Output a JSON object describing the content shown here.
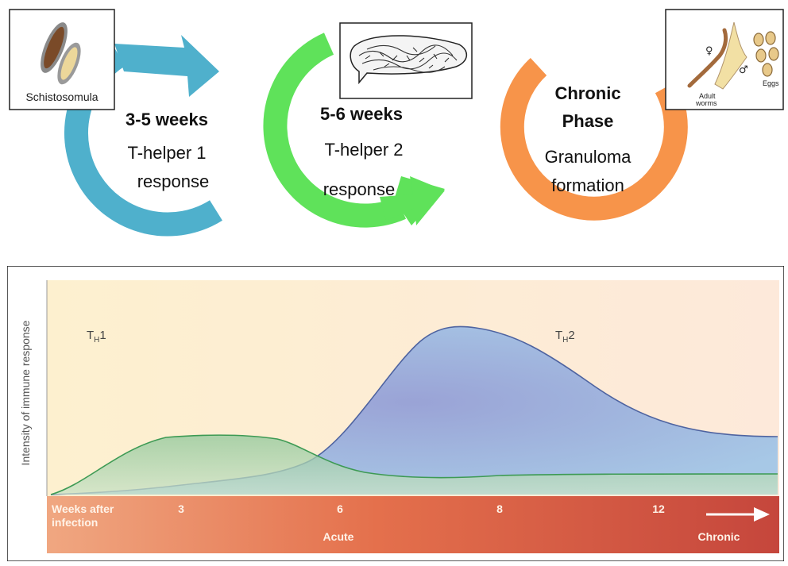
{
  "top_panel": {
    "stages": [
      {
        "id": "th1",
        "duration": "3-5 weeks",
        "line1": "T-helper 1",
        "line2": "response",
        "color": "#4fb0cc"
      },
      {
        "id": "th2",
        "duration": "5-6 weeks",
        "line1": "T-helper 2",
        "line2": "response",
        "color": "#5fe25a"
      },
      {
        "id": "chronic",
        "title_line1": "Chronic",
        "title_line2": "Phase",
        "line1": "Granuloma",
        "line2": "formation",
        "color": "#f7944a"
      }
    ],
    "insets": {
      "schistosomula_label": "Schistosomula",
      "adult_worms_line1": "Adult",
      "adult_worms_line2": "worms",
      "eggs_label": "Eggs",
      "female_symbol": "♀",
      "male_symbol": "♂"
    }
  },
  "bottom_panel": {
    "ylabel": "Intensity of immune response",
    "series_labels": {
      "th1": {
        "main": "T",
        "sub": "H",
        "num": "1"
      },
      "th2": {
        "main": "T",
        "sub": "H",
        "num": "2"
      }
    },
    "timeline": {
      "start_label_line1": "Weeks after",
      "start_label_line2": "infection",
      "ticks": [
        "3",
        "6",
        "8",
        "12"
      ],
      "phase_acute": "Acute",
      "phase_chronic": "Chronic"
    },
    "colors": {
      "th1_fill": "#8fc79a",
      "th1_line": "#3d9a54",
      "th2_fill": "#8fa6d4",
      "th2_line": "#4e63a0",
      "band_start": "#f0a781",
      "band_end": "#c5463c",
      "background_start": "#fdf0cf",
      "background_end": "#fde9da"
    }
  }
}
